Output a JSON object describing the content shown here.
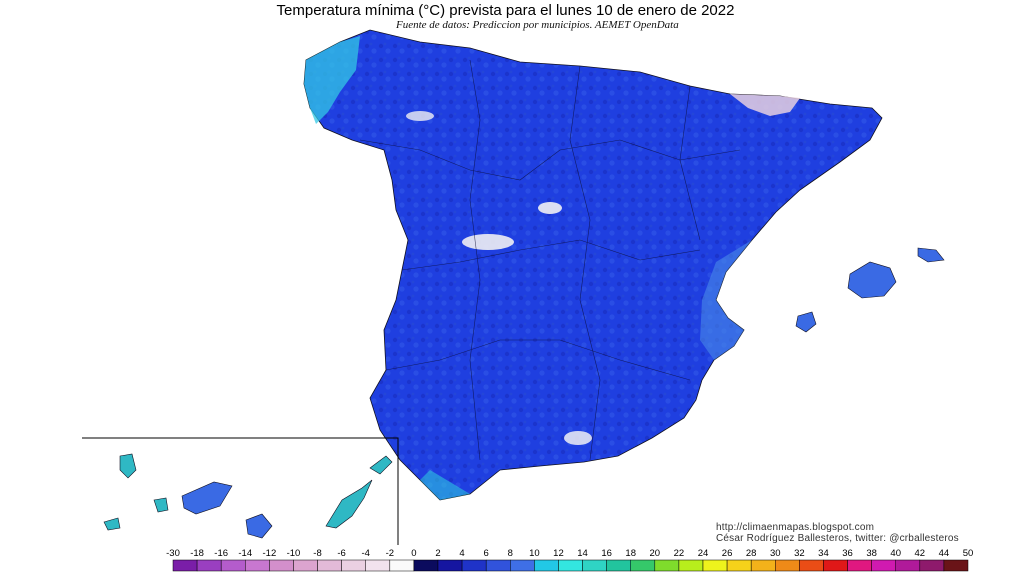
{
  "map": {
    "title": "Temperatura mínima (°C) prevista para el lunes 10 de enero de 2022",
    "subtitle": "Fuente de datos: Prediccion por municipios. AEMET OpenData",
    "credits": {
      "url": "http://climaenmapas.blogspot.com",
      "author": "César Rodríguez Ballesteros, twitter: @crballesteros"
    }
  },
  "legend": {
    "unit": "°C",
    "ticks": [
      "-30",
      "-18",
      "-16",
      "-14",
      "-12",
      "-10",
      "-8",
      "-6",
      "-4",
      "-2",
      "0",
      "2",
      "4",
      "6",
      "8",
      "10",
      "12",
      "14",
      "16",
      "18",
      "20",
      "22",
      "24",
      "26",
      "28",
      "30",
      "32",
      "34",
      "36",
      "38",
      "40",
      "42",
      "44",
      "50"
    ],
    "colors": [
      "#7a1ea8",
      "#9a3fc0",
      "#b45ccc",
      "#c877d0",
      "#d38fcb",
      "#dca4cf",
      "#e3bad8",
      "#ebd0e2",
      "#f2e2ee",
      "#fafafa",
      "#0b0b5e",
      "#1515a0",
      "#1f33c8",
      "#3153dc",
      "#3f6fe6",
      "#22c8e6",
      "#33e6e0",
      "#2fd4c4",
      "#22c49e",
      "#35c86a",
      "#7fdc2c",
      "#b8ee1c",
      "#eef31c",
      "#f6d21a",
      "#f3b21a",
      "#ef8a18",
      "#ea4d16",
      "#e01818",
      "#e01880",
      "#d01ab0",
      "#b01a9a",
      "#8e1a6c",
      "#6a1418"
    ]
  },
  "regions": [
    {
      "name": "Peninsula Iberica",
      "fill": "#1f3fe0"
    },
    {
      "name": "Islas Baleares",
      "fill": "#3a6ae4"
    },
    {
      "name": "Islas Canarias",
      "fill": "#2fb8c4"
    }
  ]
}
